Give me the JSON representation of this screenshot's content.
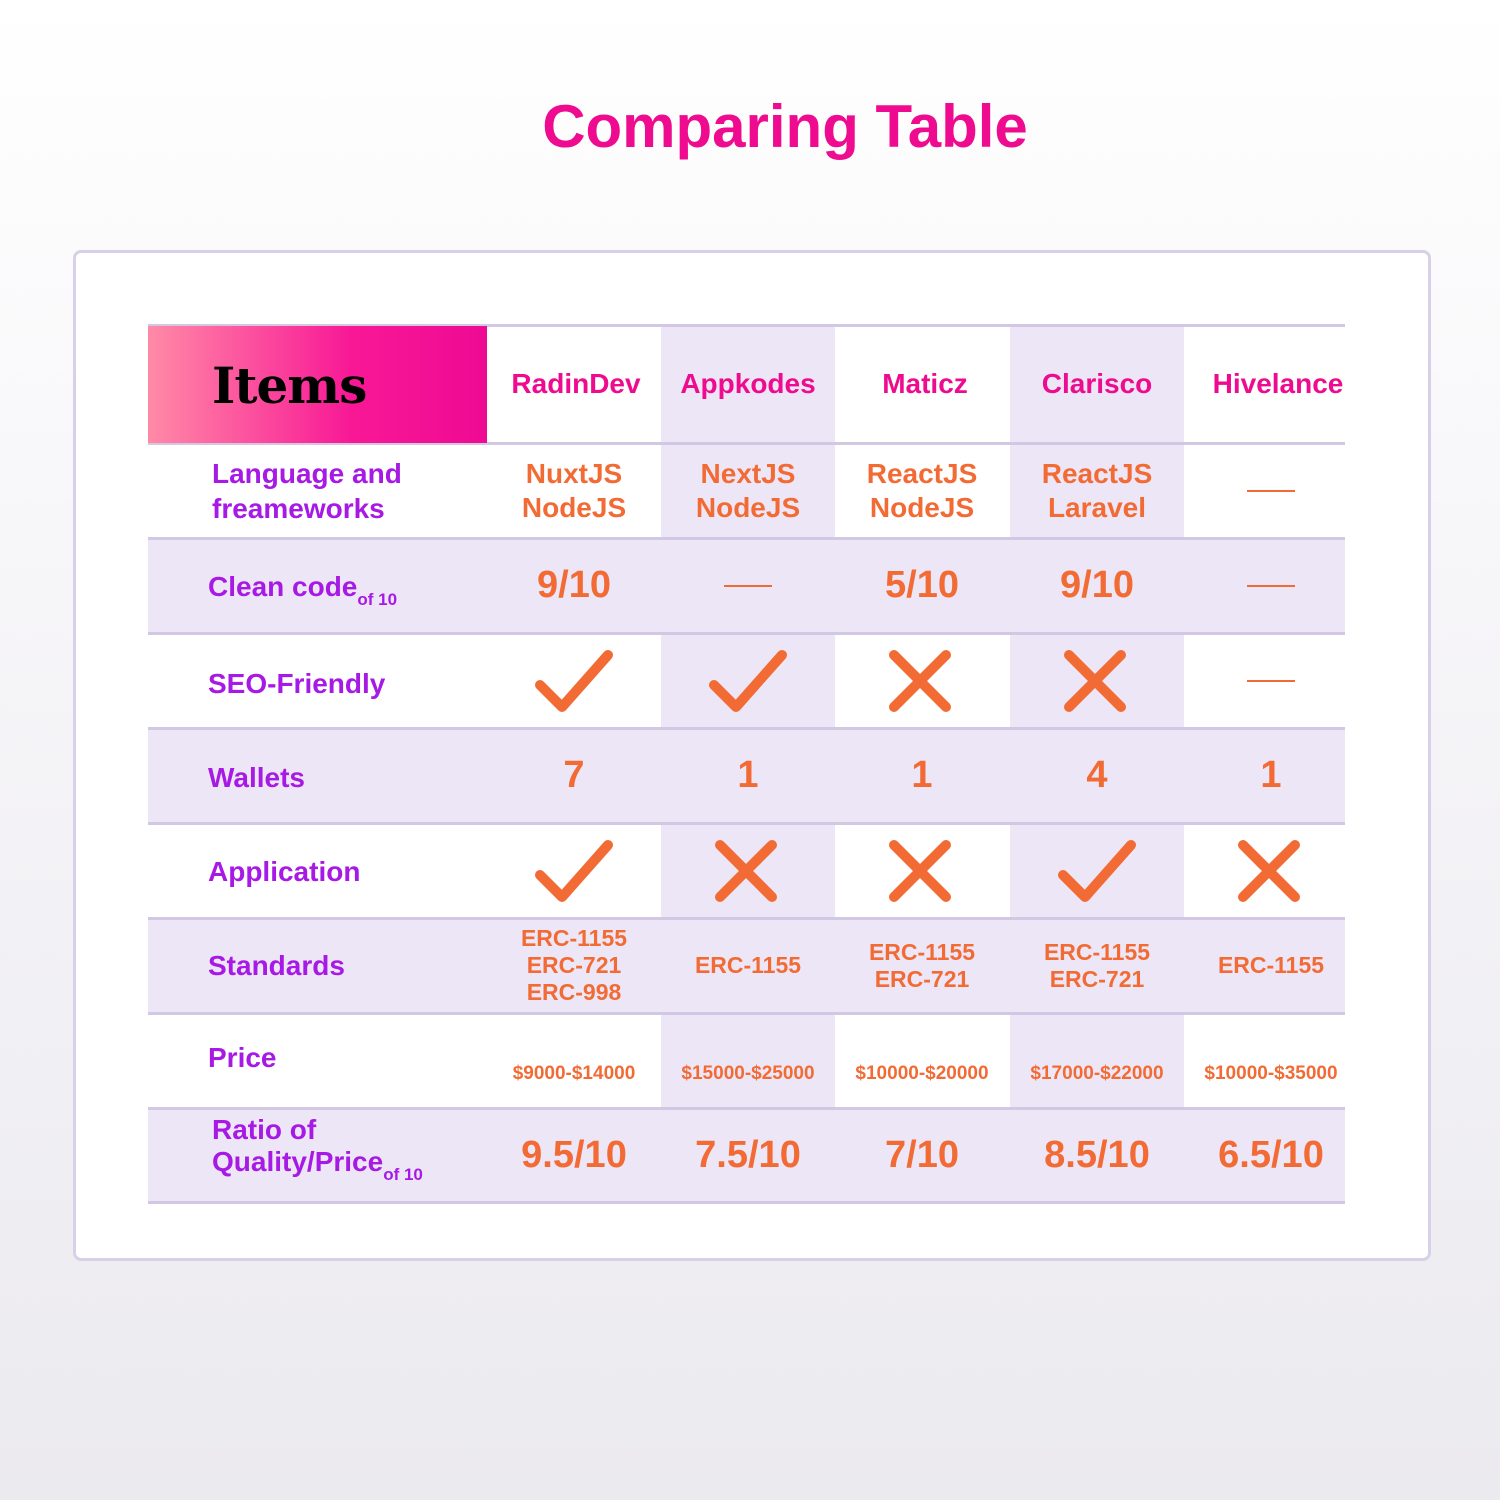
{
  "title": "Comparing Table",
  "header_label": "Items",
  "columns": [
    "RadinDev",
    "Appkodes",
    "Maticz",
    "Clarisco",
    "Hivelance"
  ],
  "rows": {
    "frameworks": {
      "label_line1": "Language and",
      "label_line2": "freameworks",
      "values": [
        [
          "NuxtJS",
          "NodeJS"
        ],
        [
          "NextJS",
          "NodeJS"
        ],
        [
          "ReactJS",
          "NodeJS"
        ],
        [
          "ReactJS",
          "Laravel"
        ],
        null
      ]
    },
    "clean_code": {
      "label": "Clean code",
      "sub": "of 10",
      "values": [
        "9/10",
        null,
        "5/10",
        "9/10",
        null
      ]
    },
    "seo": {
      "label": "SEO-Friendly",
      "values": [
        "check-icon",
        "check-icon",
        "cross-icon",
        "cross-icon",
        null
      ]
    },
    "wallets": {
      "label": "Wallets",
      "values": [
        "7",
        "1",
        "1",
        "4",
        "1"
      ]
    },
    "application": {
      "label": "Application",
      "values": [
        "check-icon",
        "cross-icon",
        "cross-icon",
        "check-icon",
        "cross-icon"
      ]
    },
    "standards": {
      "label": "Standards",
      "values": [
        [
          "ERC-1155",
          "ERC-721",
          "ERC-998"
        ],
        [
          "ERC-1155"
        ],
        [
          "ERC-1155",
          "ERC-721"
        ],
        [
          "ERC-1155",
          "ERC-721"
        ],
        [
          "ERC-1155"
        ]
      ]
    },
    "price": {
      "label": "Price",
      "values": [
        "$9000-$14000",
        "$15000-$25000",
        "$10000-$20000",
        "$17000-$22000",
        "$10000-$35000"
      ]
    },
    "ratio": {
      "label_line1": "Ratio of",
      "label_line2": "Quality/Price",
      "sub": "of 10",
      "values": [
        "9.5/10",
        "7.5/10",
        "7/10",
        "8.5/10",
        "6.5/10"
      ]
    }
  },
  "colors": {
    "title": "#ee0b8f",
    "row_label": "#a719e4",
    "value": "#f26b35",
    "band": "#ede6f6"
  }
}
